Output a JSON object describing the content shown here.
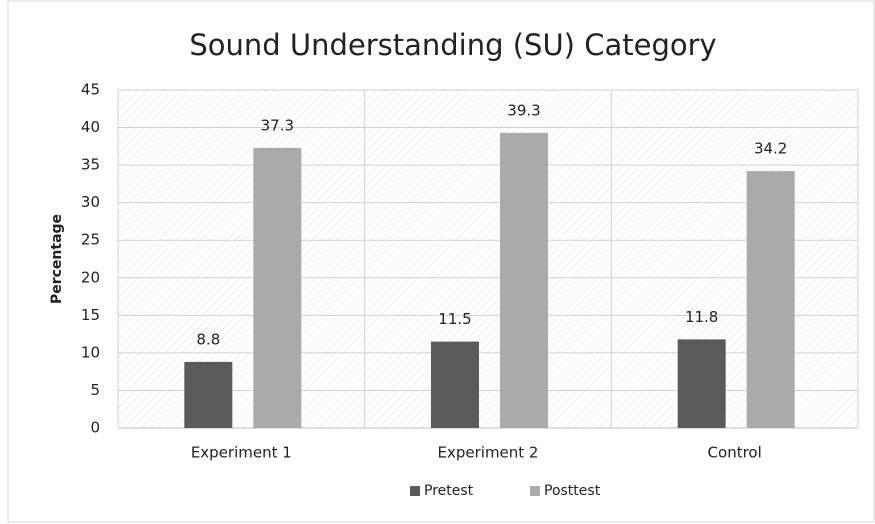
{
  "chart_data": {
    "type": "bar",
    "title": "Sound Understanding (SU) Category",
    "ylabel": "Percentage",
    "categories": [
      "Experiment 1",
      "Experiment 2",
      "Control"
    ],
    "series": [
      {
        "name": "Pretest",
        "color": "#5a5a5a",
        "values": [
          8.8,
          11.5,
          11.8
        ]
      },
      {
        "name": "Posttest",
        "color": "#aaaaaa",
        "values": [
          37.3,
          39.3,
          34.2
        ]
      }
    ],
    "ylim": [
      0,
      45
    ],
    "yticks": [
      0,
      5,
      10,
      15,
      20,
      25,
      30,
      35,
      40,
      45
    ],
    "grid": true,
    "legend": "bottom"
  }
}
